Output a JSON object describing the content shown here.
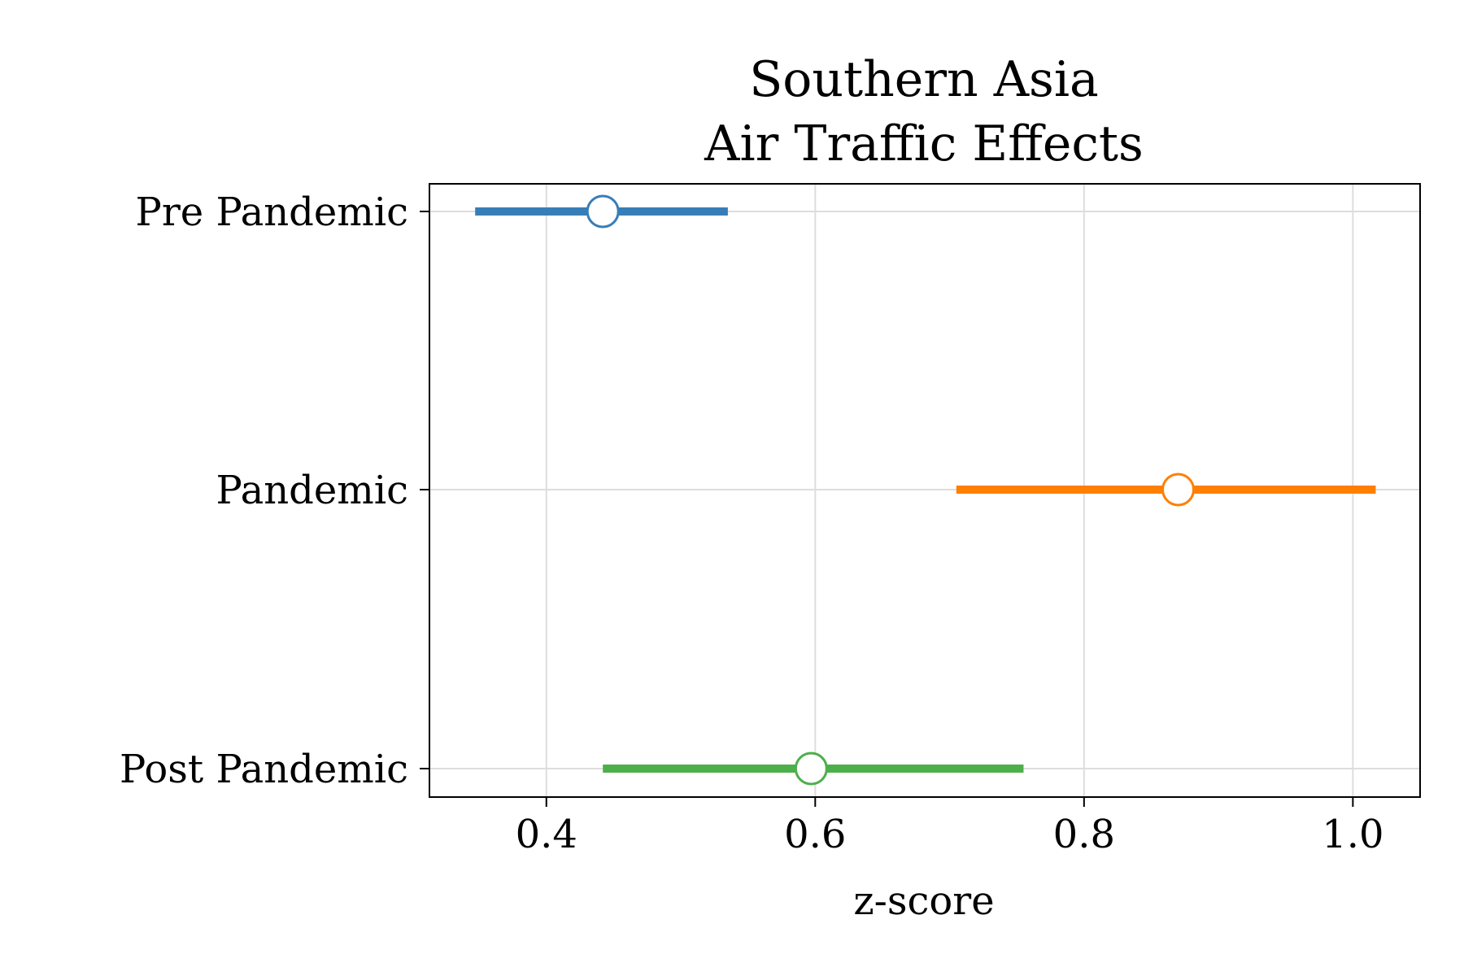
{
  "chart_data": {
    "type": "forest",
    "title": [
      "Southern Asia",
      "Air Traffic Effects"
    ],
    "xlabel": "z-score",
    "ylabel": "",
    "xlim": [
      0.313,
      1.05
    ],
    "xticks": [
      0.4,
      0.6,
      0.8,
      1.0
    ],
    "xtick_labels": [
      "0.4",
      "0.6",
      "0.8",
      "1.0"
    ],
    "grid": true,
    "categories": [
      "Pre Pandemic",
      "Pandemic",
      "Post Pandemic"
    ],
    "points": [
      {
        "category": "Pre Pandemic",
        "estimate": 0.442,
        "lower": 0.347,
        "upper": 0.535,
        "color": "#377eb8"
      },
      {
        "category": "Pandemic",
        "estimate": 0.87,
        "lower": 0.705,
        "upper": 1.017,
        "color": "#ff7f00"
      },
      {
        "category": "Post Pandemic",
        "estimate": 0.597,
        "lower": 0.442,
        "upper": 0.755,
        "color": "#4daf4a"
      }
    ]
  }
}
